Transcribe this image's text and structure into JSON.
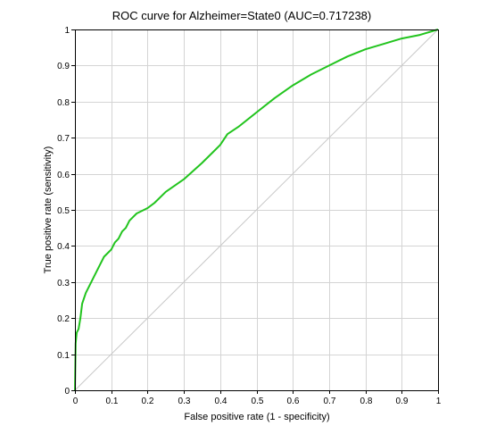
{
  "chart_data": {
    "type": "line",
    "title": "ROC curve for Alzheimer=State0 (AUC=0.717238)",
    "xlabel": "False positive rate (1 - specificity)",
    "ylabel": "True positive rate (sensitivity)",
    "xlim": [
      0,
      1
    ],
    "ylim": [
      0,
      1
    ],
    "xticks": [
      "0",
      "0.1",
      "0.2",
      "0.3",
      "0.4",
      "0.5",
      "0.6",
      "0.7",
      "0.8",
      "0.9",
      "1"
    ],
    "yticks": [
      "0",
      "0.1",
      "0.2",
      "0.3",
      "0.4",
      "0.5",
      "0.6",
      "0.7",
      "0.8",
      "0.9",
      "1"
    ],
    "grid": true,
    "series": [
      {
        "color": "#22c41e",
        "x": [
          0,
          0.002,
          0.005,
          0.01,
          0.015,
          0.02,
          0.03,
          0.04,
          0.05,
          0.06,
          0.07,
          0.08,
          0.09,
          0.1,
          0.11,
          0.12,
          0.13,
          0.14,
          0.15,
          0.16,
          0.17,
          0.18,
          0.2,
          0.22,
          0.25,
          0.3,
          0.35,
          0.38,
          0.4,
          0.42,
          0.45,
          0.5,
          0.55,
          0.6,
          0.65,
          0.7,
          0.75,
          0.8,
          0.85,
          0.9,
          0.95,
          1.0
        ],
        "y": [
          0,
          0.13,
          0.16,
          0.17,
          0.2,
          0.24,
          0.27,
          0.29,
          0.31,
          0.33,
          0.35,
          0.37,
          0.38,
          0.39,
          0.41,
          0.42,
          0.44,
          0.45,
          0.47,
          0.48,
          0.49,
          0.495,
          0.505,
          0.52,
          0.55,
          0.585,
          0.63,
          0.66,
          0.68,
          0.71,
          0.73,
          0.77,
          0.81,
          0.845,
          0.875,
          0.9,
          0.925,
          0.945,
          0.96,
          0.975,
          0.985,
          1.0
        ]
      },
      {
        "color": "#c8c8c8",
        "x": [
          0,
          1
        ],
        "y": [
          0,
          1
        ]
      }
    ]
  }
}
